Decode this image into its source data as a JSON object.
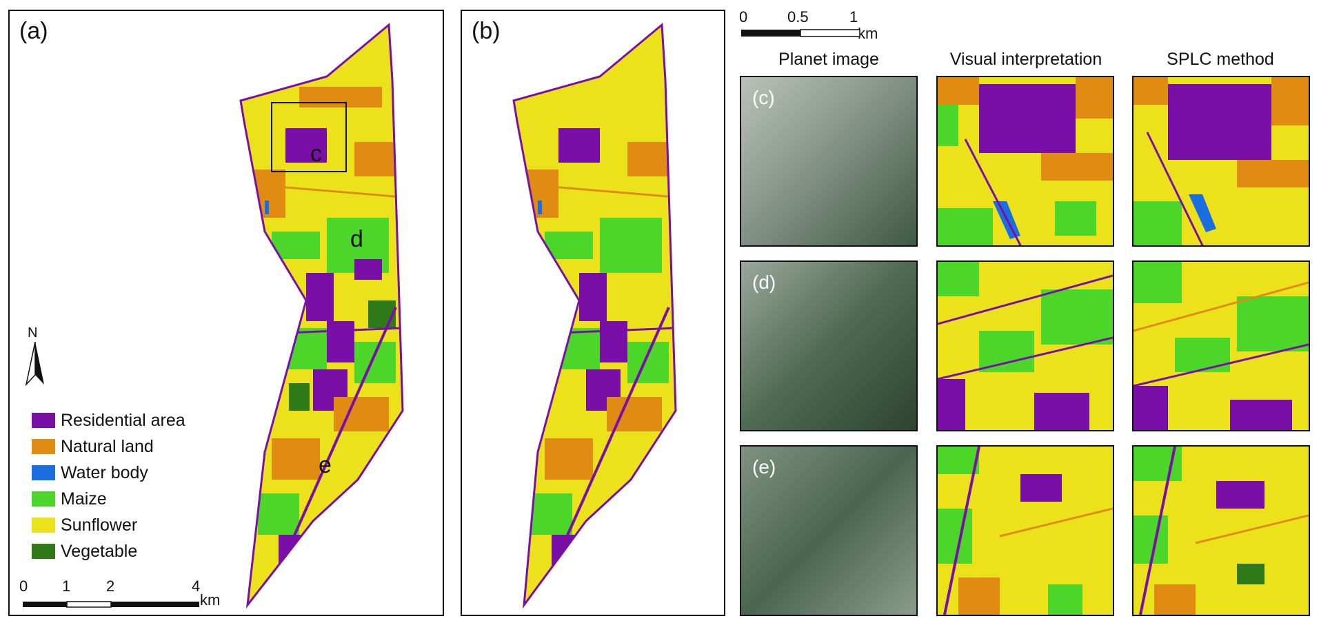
{
  "panels": {
    "a": {
      "label": "(a)"
    },
    "b": {
      "label": "(b)"
    }
  },
  "map_a_markers": {
    "c": "c",
    "d": "d",
    "e": "e"
  },
  "north_arrow": {
    "label": "N"
  },
  "legend": [
    {
      "label": "Residential area",
      "color": "#7a0fa8"
    },
    {
      "label": "Natural land",
      "color": "#e08c12"
    },
    {
      "label": "Water body",
      "color": "#1a6fe0"
    },
    {
      "label": "Maize",
      "color": "#4dd62a"
    },
    {
      "label": "Sunflower",
      "color": "#ece21c"
    },
    {
      "label": "Vegetable",
      "color": "#2e7a18"
    }
  ],
  "scale_main": {
    "ticks": [
      "0",
      "1",
      "2",
      "4"
    ],
    "unit": "km"
  },
  "scale_small": {
    "ticks": [
      "0",
      "0.5",
      "1"
    ],
    "unit": "km"
  },
  "columns": [
    "Planet image",
    "Visual interpretation",
    "SPLC method"
  ],
  "rows": [
    {
      "label": "(c)"
    },
    {
      "label": "(d)"
    },
    {
      "label": "(e)"
    }
  ]
}
